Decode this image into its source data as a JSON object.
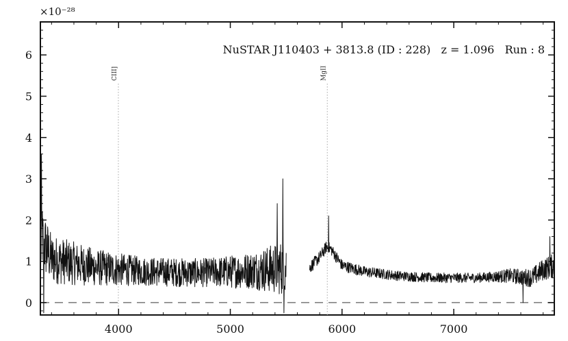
{
  "chart_data": {
    "type": "line",
    "title": "NuSTAR J110403 + 3813.8 (ID : 228)   z = 1.096   Run : 8",
    "xlabel": "",
    "ylabel": "",
    "y_multiplier": "×10⁻²⁸",
    "xlim": [
      3300,
      7900
    ],
    "ylim": [
      -0.3,
      6.8
    ],
    "x_ticks": [
      4000,
      5000,
      6000,
      7000
    ],
    "y_ticks": [
      0,
      1,
      2,
      3,
      4,
      5,
      6
    ],
    "x_tick_labels": [
      "4000",
      "5000",
      "6000",
      "7000"
    ],
    "y_tick_labels": [
      "0",
      "1",
      "2",
      "3",
      "4",
      "5",
      "6"
    ],
    "zero_line": 0,
    "emission_lines": [
      {
        "label": "CIII]",
        "x": 3998
      },
      {
        "label": "MgII",
        "x": 5868
      }
    ],
    "series": [
      {
        "color": "#111111",
        "segments": [
          {
            "x_range": [
              3300,
              5500
            ],
            "anchors": [
              [
                3300,
                1.9
              ],
              [
                3320,
                1.5
              ],
              [
                3400,
                1.05
              ],
              [
                3600,
                0.95
              ],
              [
                3800,
                0.85
              ],
              [
                4000,
                0.8
              ],
              [
                4300,
                0.75
              ],
              [
                4700,
                0.72
              ],
              [
                5000,
                0.75
              ],
              [
                5300,
                0.8
              ],
              [
                5500,
                0.85
              ]
            ],
            "noise": [
              [
                3300,
                0.9
              ],
              [
                3400,
                0.6
              ],
              [
                3800,
                0.45
              ],
              [
                4200,
                0.35
              ],
              [
                4800,
                0.35
              ],
              [
                5200,
                0.45
              ],
              [
                5500,
                0.7
              ]
            ],
            "spikes": [
              [
                3310,
                3.6
              ],
              [
                3330,
                -0.25
              ],
              [
                5420,
                2.4
              ],
              [
                5470,
                3.0
              ],
              [
                5480,
                -0.25
              ]
            ]
          },
          {
            "x_range": [
              5710,
              7900
            ],
            "anchors": [
              [
                5710,
                0.85
              ],
              [
                5800,
                1.1
              ],
              [
                5860,
                1.35
              ],
              [
                5900,
                1.3
              ],
              [
                6000,
                0.9
              ],
              [
                6200,
                0.75
              ],
              [
                6500,
                0.65
              ],
              [
                6800,
                0.6
              ],
              [
                7200,
                0.6
              ],
              [
                7500,
                0.65
              ],
              [
                7700,
                0.6
              ],
              [
                7800,
                0.8
              ],
              [
                7900,
                0.9
              ]
            ],
            "noise": [
              [
                5710,
                0.15
              ],
              [
                6000,
                0.14
              ],
              [
                6500,
                0.12
              ],
              [
                7300,
                0.12
              ],
              [
                7600,
                0.2
              ],
              [
                7900,
                0.3
              ]
            ],
            "spikes": [
              [
                5880,
                2.1
              ],
              [
                7620,
                0.0
              ],
              [
                7860,
                1.6
              ]
            ]
          }
        ]
      }
    ]
  }
}
